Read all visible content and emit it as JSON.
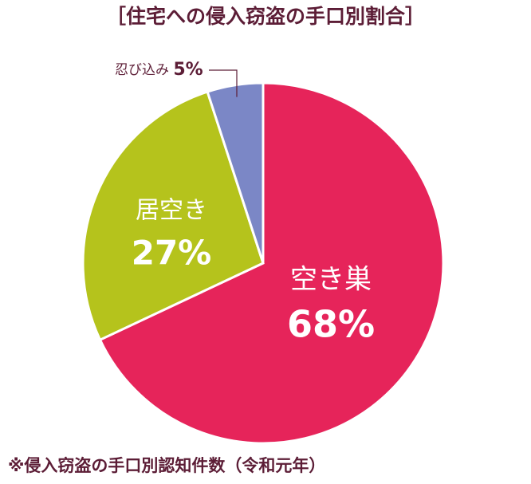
{
  "chart_data": {
    "type": "pie",
    "title": "［住宅への侵入窃盗の手口別割合］",
    "note": "※侵入窃盗の手口別認知件数（令和元年）",
    "categories": [
      "空き巣",
      "居空き",
      "忍び込み"
    ],
    "values": [
      68,
      27,
      5
    ],
    "value_labels": [
      "68%",
      "27%",
      "5%"
    ],
    "colors": [
      "#e6245a",
      "#b5c31c",
      "#7b87c6"
    ]
  }
}
